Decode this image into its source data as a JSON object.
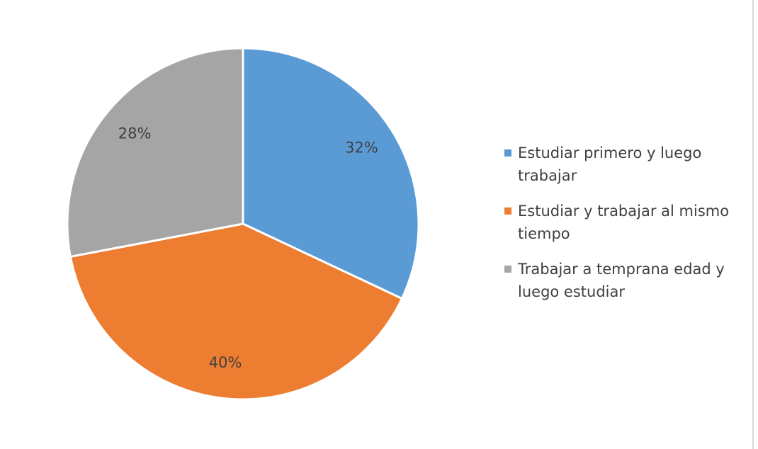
{
  "chart_data": {
    "type": "pie",
    "categories": [
      "Estudiar primero y luego trabajar",
      "Estudiar y trabajar al mismo tiempo",
      "Trabajar a temprana edad y luego estudiar"
    ],
    "values": [
      32,
      40,
      28
    ],
    "value_labels": [
      "32%",
      "40%",
      "28%"
    ],
    "colors": [
      "#5b9bd5",
      "#ed7d31",
      "#a5a5a5"
    ],
    "legend": "right"
  }
}
